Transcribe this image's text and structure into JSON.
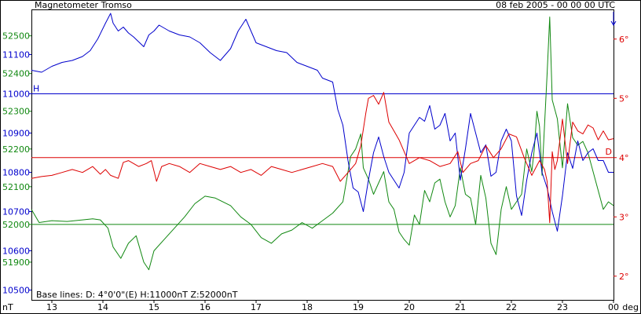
{
  "chart_data": {
    "type": "line",
    "title": "Magnetometer Tromso",
    "timestamp": "08 feb 2005 - 00 00 00 UTC",
    "footnote": "Base lines:  D: 4°0'0\"(E)  H:11000nT  Z:52000nT",
    "x_unit_label": "nT",
    "right_unit_label": "deg",
    "x_ticks": [
      "13",
      "14",
      "15",
      "16",
      "17",
      "18",
      "19",
      "20",
      "21",
      "22",
      "23",
      "00"
    ],
    "xlim": [
      12.6,
      24
    ],
    "now_marker_x": 24,
    "axes": {
      "Z": {
        "ticks": [
          52500,
          52400,
          52300,
          52200,
          52100,
          52000,
          51900
        ],
        "tick_labels": [
          "52500",
          "52400",
          "52300",
          "52200",
          "52100",
          "52000",
          "51900"
        ],
        "ylim": [
          51800,
          52570
        ],
        "baseline": 52000,
        "color": "#118811"
      },
      "H": {
        "ticks": [
          11100,
          11000,
          10900,
          10800,
          10700,
          10600,
          10500
        ],
        "tick_labels": [
          "11100",
          "11000",
          "10900",
          "10800",
          "10700",
          "10600",
          "10500"
        ],
        "ylim": [
          10475,
          11215
        ],
        "baseline": 11000,
        "color": "#0000cc"
      },
      "D": {
        "ticks": [
          6,
          5,
          4,
          3,
          2
        ],
        "tick_labels": [
          "6°",
          "5°",
          "4°",
          "3°",
          "2°"
        ],
        "ylim": [
          1.6,
          6.5
        ],
        "baseline": 4.0,
        "color": "#dd0000"
      }
    },
    "series": [
      {
        "name": "Z",
        "axis": "Z",
        "color": "#118811",
        "x": [
          12.6,
          12.75,
          13.0,
          13.3,
          13.6,
          13.8,
          13.95,
          14.1,
          14.2,
          14.35,
          14.5,
          14.65,
          14.8,
          14.9,
          15.0,
          15.2,
          15.4,
          15.6,
          15.8,
          16.0,
          16.2,
          16.5,
          16.7,
          16.9,
          17.1,
          17.3,
          17.5,
          17.7,
          17.9,
          18.1,
          18.3,
          18.5,
          18.7,
          18.85,
          18.95,
          19.05,
          19.1,
          19.2,
          19.3,
          19.4,
          19.5,
          19.6,
          19.7,
          19.8,
          19.9,
          20.0,
          20.1,
          20.2,
          20.3,
          20.4,
          20.5,
          20.6,
          20.7,
          20.8,
          20.9,
          21.0,
          21.1,
          21.2,
          21.3,
          21.4,
          21.5,
          21.6,
          21.7,
          21.8,
          21.9,
          22.0,
          22.1,
          22.2,
          22.3,
          22.4,
          22.45,
          22.5,
          22.55,
          22.6,
          22.7,
          22.75,
          22.8,
          22.9,
          23.0,
          23.1,
          23.2,
          23.3,
          23.4,
          23.5,
          23.6,
          23.7,
          23.8,
          23.9,
          24.0
        ],
        "y": [
          52040,
          52005,
          52010,
          52008,
          52012,
          52015,
          52012,
          51990,
          51940,
          51910,
          51950,
          51970,
          51900,
          51880,
          51930,
          51960,
          51990,
          52020,
          52055,
          52075,
          52070,
          52050,
          52020,
          52000,
          51965,
          51950,
          51975,
          51985,
          52005,
          51990,
          52010,
          52030,
          52060,
          52180,
          52200,
          52240,
          52150,
          52120,
          52080,
          52110,
          52140,
          52060,
          52040,
          51980,
          51960,
          51945,
          52025,
          52000,
          52090,
          52060,
          52110,
          52120,
          52060,
          52020,
          52050,
          52150,
          52080,
          52070,
          52000,
          52130,
          52070,
          51950,
          51920,
          52040,
          52100,
          52040,
          52060,
          52080,
          52200,
          52140,
          52200,
          52300,
          52260,
          52130,
          52400,
          52550,
          52330,
          52280,
          52150,
          52320,
          52230,
          52210,
          52220,
          52190,
          52140,
          52090,
          52040,
          52060,
          52050
        ]
      },
      {
        "name": "H",
        "axis": "H",
        "color": "#0000cc",
        "x": [
          12.6,
          12.8,
          13.0,
          13.2,
          13.4,
          13.6,
          13.75,
          13.9,
          14.05,
          14.15,
          14.2,
          14.3,
          14.4,
          14.5,
          14.6,
          14.8,
          14.9,
          15.0,
          15.1,
          15.3,
          15.5,
          15.7,
          15.9,
          16.1,
          16.3,
          16.5,
          16.65,
          16.8,
          16.9,
          17.0,
          17.2,
          17.4,
          17.6,
          17.8,
          18.0,
          18.2,
          18.3,
          18.5,
          18.6,
          18.7,
          18.8,
          18.9,
          19.0,
          19.1,
          19.2,
          19.3,
          19.4,
          19.5,
          19.6,
          19.7,
          19.8,
          19.9,
          20.0,
          20.1,
          20.2,
          20.3,
          20.4,
          20.5,
          20.6,
          20.7,
          20.8,
          20.9,
          21.0,
          21.1,
          21.2,
          21.3,
          21.4,
          21.5,
          21.6,
          21.7,
          21.8,
          21.9,
          22.0,
          22.1,
          22.2,
          22.3,
          22.4,
          22.5,
          22.6,
          22.7,
          22.8,
          22.9,
          23.0,
          23.1,
          23.2,
          23.3,
          23.4,
          23.5,
          23.6,
          23.7,
          23.8,
          23.9,
          24.0
        ],
        "y": [
          11060,
          11055,
          11070,
          11080,
          11085,
          11095,
          11110,
          11140,
          11180,
          11205,
          11180,
          11160,
          11170,
          11155,
          11145,
          11120,
          11150,
          11160,
          11175,
          11160,
          11150,
          11145,
          11130,
          11105,
          11085,
          11115,
          11160,
          11190,
          11160,
          11130,
          11120,
          11110,
          11105,
          11080,
          11070,
          11060,
          11040,
          11030,
          10960,
          10920,
          10830,
          10760,
          10750,
          10700,
          10780,
          10850,
          10890,
          10840,
          10800,
          10780,
          10760,
          10800,
          10900,
          10920,
          10940,
          10930,
          10970,
          10910,
          10920,
          10950,
          10880,
          10900,
          10780,
          10860,
          10950,
          10900,
          10850,
          10870,
          10790,
          10800,
          10880,
          10910,
          10880,
          10740,
          10690,
          10780,
          10850,
          10900,
          10800,
          10760,
          10700,
          10650,
          10740,
          10850,
          10810,
          10880,
          10830,
          10850,
          10860,
          10830,
          10830,
          10800,
          10800
        ]
      },
      {
        "name": "D",
        "axis": "D",
        "color": "#dd0000",
        "x": [
          12.6,
          12.8,
          13.0,
          13.2,
          13.4,
          13.6,
          13.8,
          13.95,
          14.05,
          14.15,
          14.3,
          14.4,
          14.5,
          14.6,
          14.7,
          14.85,
          14.95,
          15.05,
          15.15,
          15.3,
          15.5,
          15.7,
          15.9,
          16.1,
          16.3,
          16.5,
          16.7,
          16.9,
          17.1,
          17.3,
          17.5,
          17.7,
          17.9,
          18.1,
          18.3,
          18.5,
          18.65,
          18.75,
          18.85,
          18.95,
          19.05,
          19.15,
          19.2,
          19.3,
          19.4,
          19.5,
          19.6,
          19.7,
          19.8,
          19.9,
          20.0,
          20.2,
          20.4,
          20.6,
          20.8,
          20.95,
          21.05,
          21.2,
          21.35,
          21.5,
          21.65,
          21.8,
          21.95,
          22.1,
          22.25,
          22.4,
          22.55,
          22.65,
          22.7,
          22.75,
          22.8,
          22.85,
          22.9,
          23.0,
          23.1,
          23.2,
          23.3,
          23.4,
          23.5,
          23.6,
          23.7,
          23.8,
          23.9,
          24.0
        ],
        "y": [
          3.65,
          3.68,
          3.7,
          3.75,
          3.8,
          3.75,
          3.85,
          3.72,
          3.8,
          3.7,
          3.65,
          3.92,
          3.95,
          3.9,
          3.85,
          3.9,
          3.95,
          3.6,
          3.85,
          3.9,
          3.85,
          3.75,
          3.9,
          3.85,
          3.8,
          3.85,
          3.75,
          3.8,
          3.7,
          3.85,
          3.8,
          3.75,
          3.8,
          3.85,
          3.9,
          3.85,
          3.6,
          3.7,
          3.8,
          3.9,
          4.2,
          4.75,
          5.0,
          5.05,
          4.9,
          5.1,
          4.6,
          4.45,
          4.3,
          4.1,
          3.9,
          4.0,
          3.95,
          3.85,
          3.9,
          4.1,
          3.75,
          3.9,
          3.95,
          4.2,
          4.0,
          4.15,
          4.4,
          4.35,
          4.0,
          3.7,
          3.95,
          3.8,
          3.6,
          2.9,
          4.1,
          3.8,
          3.95,
          4.65,
          3.9,
          4.6,
          4.45,
          4.4,
          4.55,
          4.5,
          4.3,
          4.45,
          4.3,
          4.32
        ]
      }
    ]
  }
}
